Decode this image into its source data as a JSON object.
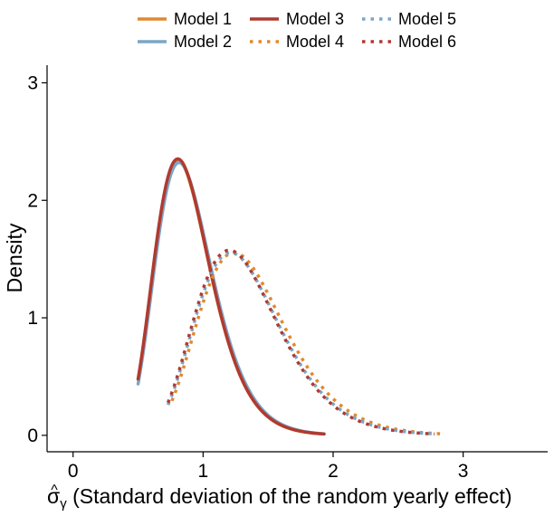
{
  "chart_data": {
    "type": "line",
    "title": "",
    "xlabel": "σ̂γ (Standard deviation of the random yearly effect)",
    "xlabel_symbol": "σ",
    "xlabel_hat": "^",
    "xlabel_subscript": "γ",
    "xlabel_text": " (Standard deviation of the random yearly effect)",
    "ylabel": "Density",
    "xlim": [
      -0.2,
      3.65
    ],
    "ylim": [
      -0.14,
      3.15
    ],
    "x_ticks": [
      0,
      1,
      2,
      3
    ],
    "x_tick_labels": [
      "0",
      "1",
      "2",
      "3"
    ],
    "y_ticks": [
      0,
      1,
      2,
      3
    ],
    "y_tick_labels": [
      "0",
      "1",
      "2",
      "3"
    ],
    "grid": false,
    "legend_position": "top",
    "series": [
      {
        "name": "Model 1",
        "color": "#E0892D",
        "style": "solid",
        "width": 3.5,
        "mode": 0.865,
        "peak": 2.26,
        "shape": 14,
        "xrange": [
          0.5,
          1.93
        ]
      },
      {
        "name": "Model 2",
        "color": "#7BA6C7",
        "style": "solid",
        "width": 3.5,
        "mode": 0.875,
        "peak": 2.24,
        "shape": 14,
        "xrange": [
          0.5,
          1.93
        ]
      },
      {
        "name": "Model 3",
        "color": "#B03A30",
        "style": "solid",
        "width": 3.5,
        "mode": 0.865,
        "peak": 2.27,
        "shape": 14,
        "xrange": [
          0.5,
          1.93
        ]
      },
      {
        "name": "Model 4",
        "color": "#E0892D",
        "style": "dotted",
        "width": 3.5,
        "mode": 1.33,
        "peak": 1.5,
        "shape": 14,
        "xrange": [
          0.76,
          2.85
        ]
      },
      {
        "name": "Model 5",
        "color": "#7BA6C7",
        "style": "dotted",
        "width": 3.5,
        "mode": 1.3,
        "peak": 1.5,
        "shape": 14,
        "xrange": [
          0.73,
          2.8
        ]
      },
      {
        "name": "Model 6",
        "color": "#B03A30",
        "style": "dotted",
        "width": 3.5,
        "mode": 1.29,
        "peak": 1.52,
        "shape": 14,
        "xrange": [
          0.73,
          2.78
        ]
      }
    ]
  }
}
